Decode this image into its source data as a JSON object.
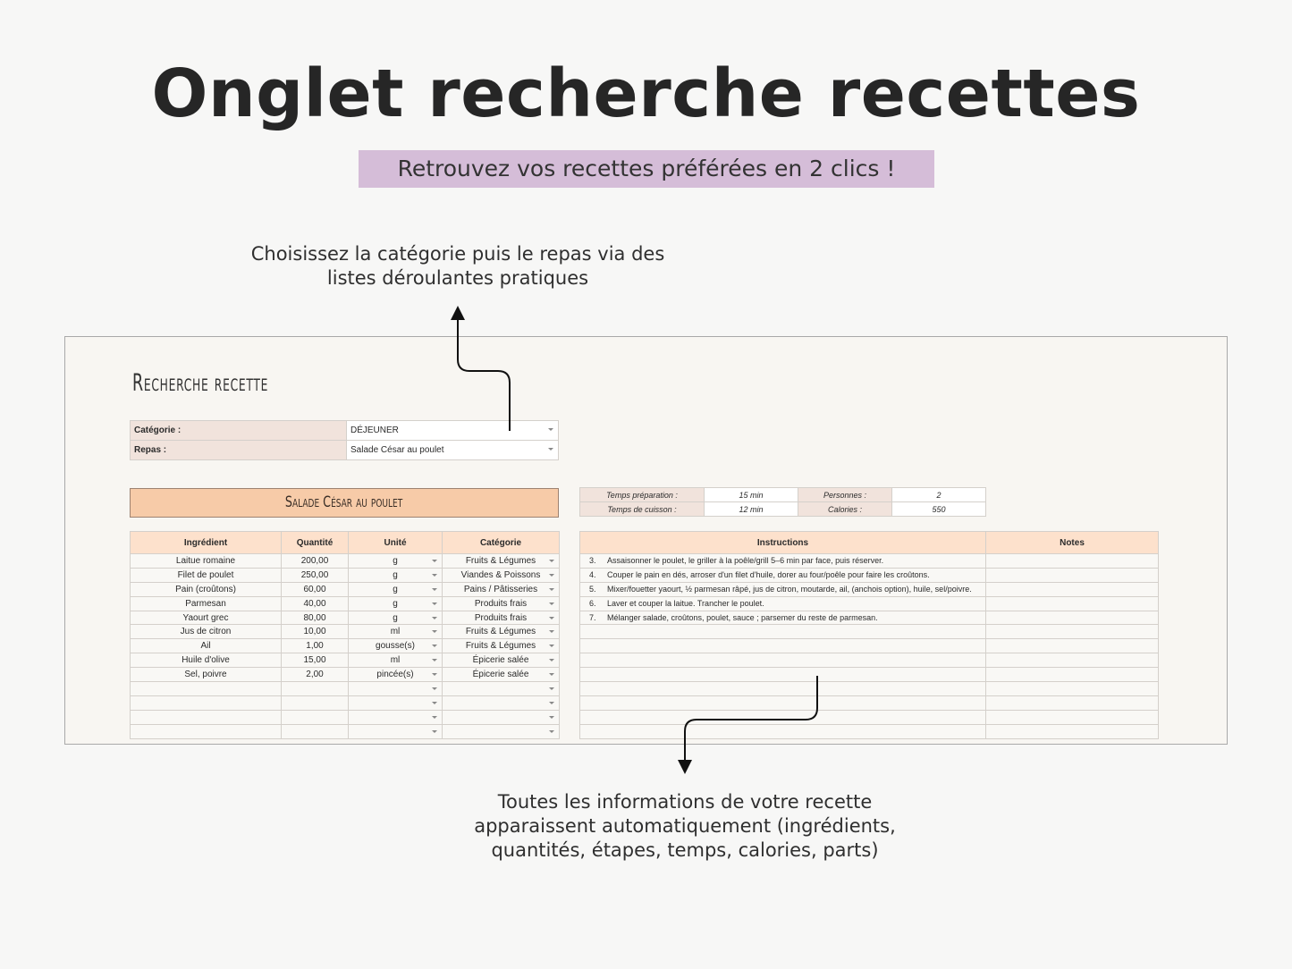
{
  "header": {
    "title": "Onglet recherche recettes",
    "subtitle": "Retrouvez vos recettes préférées en 2 clics !"
  },
  "annotations": {
    "top": [
      "Choisissez la catégorie puis le repas via des",
      "listes déroulantes pratiques"
    ],
    "bottom": [
      "Toutes les informations de votre recette",
      "apparaissent automatiquement (ingrédients,",
      "quantités, étapes, temps, calories, parts)"
    ]
  },
  "colors": {
    "subtitle_bg": "#d5bdd8",
    "header_bg": "#fde1cc",
    "banner_bg": "#f7cba8",
    "label_bg": "#f1e3dc"
  },
  "sheet": {
    "title": "Recherche recette",
    "selectors": [
      {
        "label": "Catégorie :",
        "value": "DÉJEUNER"
      },
      {
        "label": "Repas :",
        "value": "Salade César au poulet"
      }
    ],
    "recipe_name": "Salade César au poulet",
    "info": {
      "prep_label": "Temps préparation :",
      "prep_value": "15 min",
      "persons_label": "Personnes :",
      "persons_value": "2",
      "cook_label": "Temps de cuisson :",
      "cook_value": "12 min",
      "calories_label": "Calories :",
      "calories_value": "550"
    },
    "ingredients": {
      "headers": [
        "Ingrédient",
        "Quantité",
        "Unité",
        "Catégorie"
      ],
      "rows": [
        [
          "Laitue romaine",
          "200,00",
          "g",
          "Fruits & Légumes"
        ],
        [
          "Filet de poulet",
          "250,00",
          "g",
          "Viandes & Poissons"
        ],
        [
          "Pain (croûtons)",
          "60,00",
          "g",
          "Pains / Pâtisseries"
        ],
        [
          "Parmesan",
          "40,00",
          "g",
          "Produits frais"
        ],
        [
          "Yaourt grec",
          "80,00",
          "g",
          "Produits frais"
        ],
        [
          "Jus de citron",
          "10,00",
          "ml",
          "Fruits & Légumes"
        ],
        [
          "Ail",
          "1,00",
          "gousse(s)",
          "Fruits & Légumes"
        ],
        [
          "Huile d'olive",
          "15,00",
          "ml",
          "Épicerie salée"
        ],
        [
          "Sel, poivre",
          "2,00",
          "pincée(s)",
          "Épicerie salée"
        ]
      ]
    },
    "instructions": {
      "headers": [
        "Instructions",
        "Notes"
      ],
      "rows": [
        {
          "n": "3.",
          "text": "Assaisonner le poulet, le griller à la poêle/grill 5–6 min par face, puis réserver."
        },
        {
          "n": "4.",
          "text": "Couper le pain en dés, arroser d'un filet d'huile, dorer au four/poêle pour faire les croûtons."
        },
        {
          "n": "5.",
          "text": "Mixer/fouetter yaourt, ½ parmesan râpé, jus de citron, moutarde, ail, (anchois option), huile, sel/poivre."
        },
        {
          "n": "6.",
          "text": "Laver et couper la laitue. Trancher le poulet."
        },
        {
          "n": "7.",
          "text": "Mélanger salade, croûtons, poulet, sauce ; parsemer du reste de parmesan."
        }
      ]
    }
  }
}
